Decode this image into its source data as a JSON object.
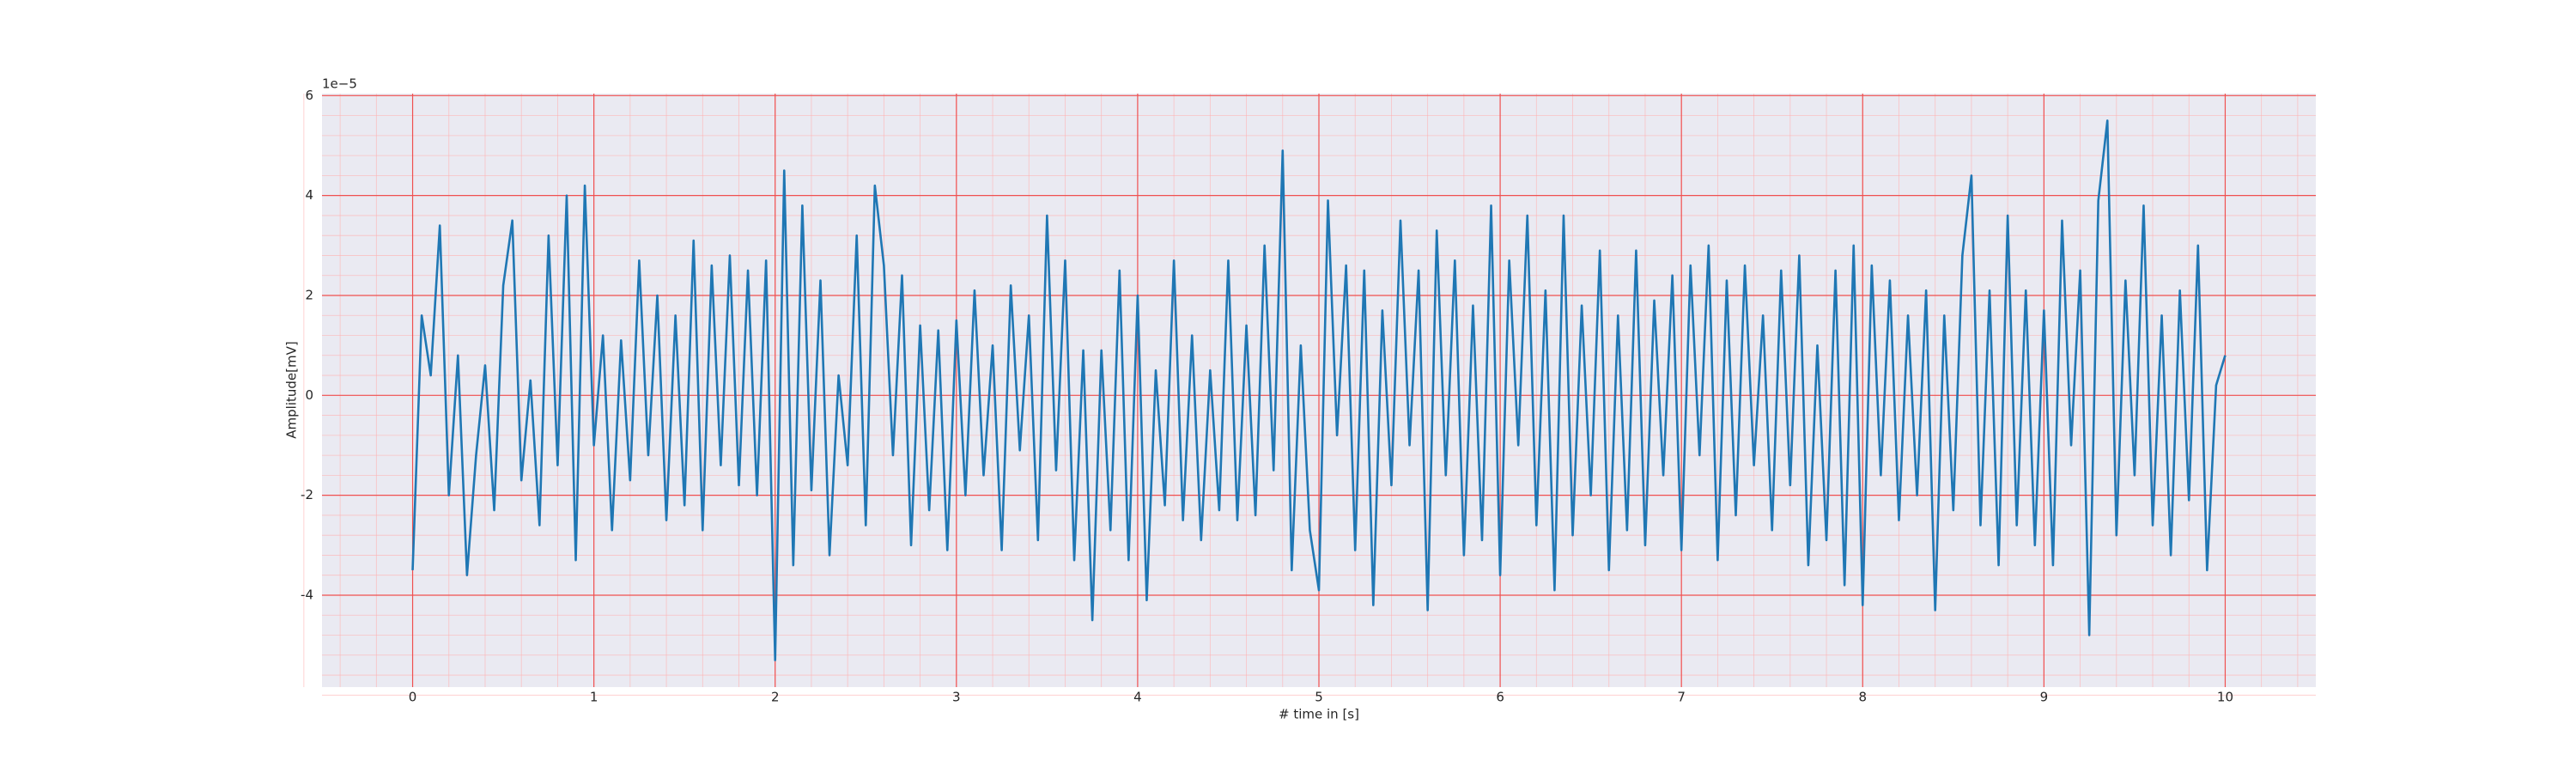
{
  "chart_data": {
    "type": "line",
    "xlabel": "# time in [s]",
    "ylabel": "Amplitude[mV]",
    "y_offset_label": "1e−5",
    "color": "#1f77b4",
    "xlim": [
      -0.5,
      10.5
    ],
    "ylim": [
      -5.84,
      6.04
    ],
    "xticks": [
      0,
      1,
      2,
      3,
      4,
      5,
      6,
      7,
      8,
      9,
      10
    ],
    "yticks": [
      -4,
      -2,
      0,
      2,
      4,
      6
    ],
    "grid": true,
    "minor_grid": true,
    "minor_divisions": 5,
    "x": [
      0,
      0.05,
      0.1,
      0.15,
      0.2,
      0.25,
      0.3,
      0.35,
      0.4,
      0.45,
      0.5,
      0.55,
      0.6,
      0.65,
      0.7,
      0.75,
      0.8,
      0.85,
      0.9,
      0.95,
      1,
      1.05,
      1.1,
      1.15,
      1.2,
      1.25,
      1.3,
      1.35,
      1.4,
      1.45,
      1.5,
      1.55,
      1.6,
      1.65,
      1.7,
      1.75,
      1.8,
      1.85,
      1.9,
      1.95,
      2,
      2.05,
      2.1,
      2.15,
      2.2,
      2.25,
      2.3,
      2.35,
      2.4,
      2.45,
      2.5,
      2.55,
      2.6,
      2.65,
      2.7,
      2.75,
      2.8,
      2.85,
      2.9,
      2.95,
      3,
      3.05,
      3.1,
      3.15,
      3.2,
      3.25,
      3.3,
      3.35,
      3.4,
      3.45,
      3.5,
      3.55,
      3.6,
      3.65,
      3.7,
      3.75,
      3.8,
      3.85,
      3.9,
      3.95,
      4,
      4.05,
      4.1,
      4.15,
      4.2,
      4.25,
      4.3,
      4.35,
      4.4,
      4.45,
      4.5,
      4.55,
      4.6,
      4.65,
      4.7,
      4.75,
      4.8,
      4.85,
      4.9,
      4.95,
      5,
      5.05,
      5.1,
      5.15,
      5.2,
      5.25,
      5.3,
      5.35,
      5.4,
      5.45,
      5.5,
      5.55,
      5.6,
      5.65,
      5.7,
      5.75,
      5.8,
      5.85,
      5.9,
      5.95,
      6,
      6.05,
      6.1,
      6.15,
      6.2,
      6.25,
      6.3,
      6.35,
      6.4,
      6.45,
      6.5,
      6.55,
      6.6,
      6.65,
      6.7,
      6.75,
      6.8,
      6.85,
      6.9,
      6.95,
      7,
      7.05,
      7.1,
      7.15,
      7.2,
      7.25,
      7.3,
      7.35,
      7.4,
      7.45,
      7.5,
      7.55,
      7.6,
      7.65,
      7.7,
      7.75,
      7.8,
      7.85,
      7.9,
      7.95,
      8,
      8.05,
      8.1,
      8.15,
      8.2,
      8.25,
      8.3,
      8.35,
      8.4,
      8.45,
      8.5,
      8.55,
      8.6,
      8.65,
      8.7,
      8.75,
      8.8,
      8.85,
      8.9,
      8.95,
      9,
      9.05,
      9.1,
      9.15,
      9.2,
      9.25,
      9.3,
      9.35,
      9.4,
      9.45,
      9.5,
      9.55,
      9.6,
      9.65,
      9.7,
      9.75,
      9.8,
      9.85,
      9.9,
      9.95,
      10
    ],
    "values": [
      -3.5,
      1.6,
      0.4,
      3.4,
      -2.0,
      0.8,
      -3.6,
      -1.2,
      0.6,
      -2.3,
      2.2,
      3.5,
      -1.7,
      0.3,
      -2.6,
      3.2,
      -1.4,
      4.0,
      -3.3,
      4.2,
      -1.0,
      1.2,
      -2.7,
      1.1,
      -1.7,
      2.7,
      -1.2,
      2.0,
      -2.5,
      1.6,
      -2.2,
      3.1,
      -2.7,
      2.6,
      -1.4,
      2.8,
      -1.8,
      2.5,
      -2.0,
      2.7,
      -5.3,
      4.5,
      -3.4,
      3.8,
      -1.9,
      2.3,
      -3.2,
      0.4,
      -1.4,
      3.2,
      -2.6,
      4.2,
      2.6,
      -1.2,
      2.4,
      -3.0,
      1.4,
      -2.3,
      1.3,
      -3.1,
      1.5,
      -2.0,
      2.1,
      -1.6,
      1.0,
      -3.1,
      2.2,
      -1.1,
      1.6,
      -2.9,
      3.6,
      -1.5,
      2.7,
      -3.3,
      0.9,
      -4.5,
      0.9,
      -2.7,
      2.5,
      -3.3,
      2.0,
      -4.1,
      0.5,
      -2.2,
      2.7,
      -2.5,
      1.2,
      -2.9,
      0.5,
      -2.3,
      2.7,
      -2.5,
      1.4,
      -2.4,
      3.0,
      -1.5,
      4.9,
      -3.5,
      1.0,
      -2.7,
      -3.9,
      3.9,
      -0.8,
      2.6,
      -3.1,
      2.5,
      -4.2,
      1.7,
      -1.8,
      3.5,
      -1.0,
      2.5,
      -4.3,
      3.3,
      -1.6,
      2.7,
      -3.2,
      1.8,
      -2.9,
      3.8,
      -3.6,
      2.7,
      -1.0,
      3.6,
      -2.6,
      2.1,
      -3.9,
      3.6,
      -2.8,
      1.8,
      -2.0,
      2.9,
      -3.5,
      1.6,
      -2.7,
      2.9,
      -3.0,
      1.9,
      -1.6,
      2.4,
      -3.1,
      2.6,
      -1.2,
      3.0,
      -3.3,
      2.3,
      -2.4,
      2.6,
      -1.4,
      1.6,
      -2.7,
      2.5,
      -1.8,
      2.8,
      -3.4,
      1.0,
      -2.9,
      2.5,
      -3.8,
      3.0,
      -4.2,
      2.6,
      -1.6,
      2.3,
      -2.5,
      1.6,
      -2.0,
      2.1,
      -4.3,
      1.6,
      -2.3,
      2.8,
      4.4,
      -2.6,
      2.1,
      -3.4,
      3.6,
      -2.6,
      2.1,
      -3.0,
      1.7,
      -3.4,
      3.5,
      -1.0,
      2.5,
      -4.8,
      3.9,
      5.5,
      -2.8,
      2.3,
      -1.6,
      3.8,
      -2.6,
      1.6,
      -3.2,
      2.1,
      -2.1,
      3.0,
      -3.5,
      0.2,
      0.8
    ]
  }
}
